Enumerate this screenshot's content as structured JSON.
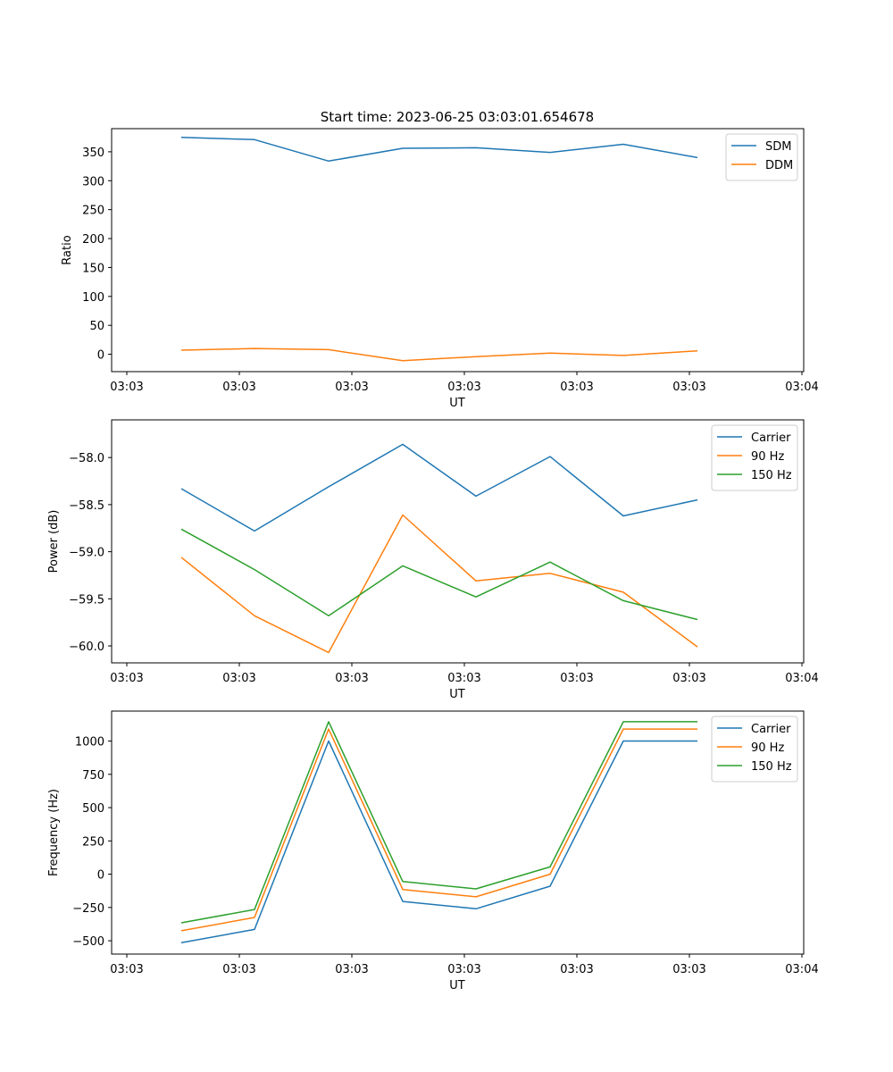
{
  "figure": {
    "title": "Start time: 2023-06-25 03:03:01.654678"
  },
  "colors": {
    "blue": "#1f77b4",
    "orange": "#ff7f0e",
    "green": "#2ca02c"
  },
  "chart_data": [
    {
      "type": "line",
      "title": "Start time: 2023-06-25 03:03:01.654678",
      "xlabel": "UT",
      "ylabel": "Ratio",
      "x_ticks": [
        "03:03",
        "03:03",
        "03:03",
        "03:03",
        "03:03",
        "03:03",
        "03:04"
      ],
      "y_ticks": [
        0,
        50,
        100,
        150,
        200,
        250,
        300,
        350
      ],
      "ylim": [
        -30,
        390
      ],
      "legend": "top-right",
      "grid": false,
      "series": [
        {
          "name": "SDM",
          "color": "#1f77b4",
          "values": [
            375,
            371,
            334,
            356,
            357,
            349,
            363,
            340
          ]
        },
        {
          "name": "DDM",
          "color": "#ff7f0e",
          "values": [
            7,
            10,
            8,
            -11,
            -4,
            2,
            -2,
            6
          ]
        }
      ]
    },
    {
      "type": "line",
      "title": "",
      "xlabel": "UT",
      "ylabel": "Power (dB)",
      "x_ticks": [
        "03:03",
        "03:03",
        "03:03",
        "03:03",
        "03:03",
        "03:03",
        "03:04"
      ],
      "y_ticks": [
        "−60.0",
        "−59.5",
        "−59.0",
        "−58.5",
        "−58.0"
      ],
      "y_tick_values": [
        -60.0,
        -59.5,
        -59.0,
        -58.5,
        -58.0
      ],
      "ylim": [
        -60.18,
        -57.6
      ],
      "legend": "top-right",
      "grid": false,
      "series": [
        {
          "name": "Carrier",
          "color": "#1f77b4",
          "values": [
            -58.33,
            -58.78,
            -58.31,
            -57.86,
            -58.41,
            -57.99,
            -58.62,
            -58.45
          ]
        },
        {
          "name": "90 Hz",
          "color": "#ff7f0e",
          "values": [
            -59.06,
            -59.68,
            -60.07,
            -58.61,
            -59.31,
            -59.23,
            -59.43,
            -60.01
          ]
        },
        {
          "name": "150 Hz",
          "color": "#2ca02c",
          "values": [
            -58.76,
            -59.19,
            -59.68,
            -59.15,
            -59.48,
            -59.11,
            -59.52,
            -59.72
          ]
        }
      ]
    },
    {
      "type": "line",
      "title": "",
      "xlabel": "UT",
      "ylabel": "Frequency (Hz)",
      "x_ticks": [
        "03:03",
        "03:03",
        "03:03",
        "03:03",
        "03:03",
        "03:03",
        "03:04"
      ],
      "y_ticks": [
        "−500",
        "−250",
        "0",
        "250",
        "500",
        "750",
        "1000"
      ],
      "y_tick_values": [
        -500,
        -250,
        0,
        250,
        500,
        750,
        1000
      ],
      "ylim": [
        -600,
        1225
      ],
      "legend": "top-right",
      "grid": false,
      "series": [
        {
          "name": "Carrier",
          "color": "#1f77b4",
          "values": [
            -515,
            -415,
            1000,
            -205,
            -260,
            -90,
            1000,
            1000
          ]
        },
        {
          "name": "90 Hz",
          "color": "#ff7f0e",
          "values": [
            -425,
            -325,
            1090,
            -115,
            -170,
            0,
            1090,
            1090
          ]
        },
        {
          "name": "150 Hz",
          "color": "#2ca02c",
          "values": [
            -365,
            -265,
            1145,
            -55,
            -110,
            55,
            1145,
            1145
          ]
        }
      ]
    }
  ]
}
